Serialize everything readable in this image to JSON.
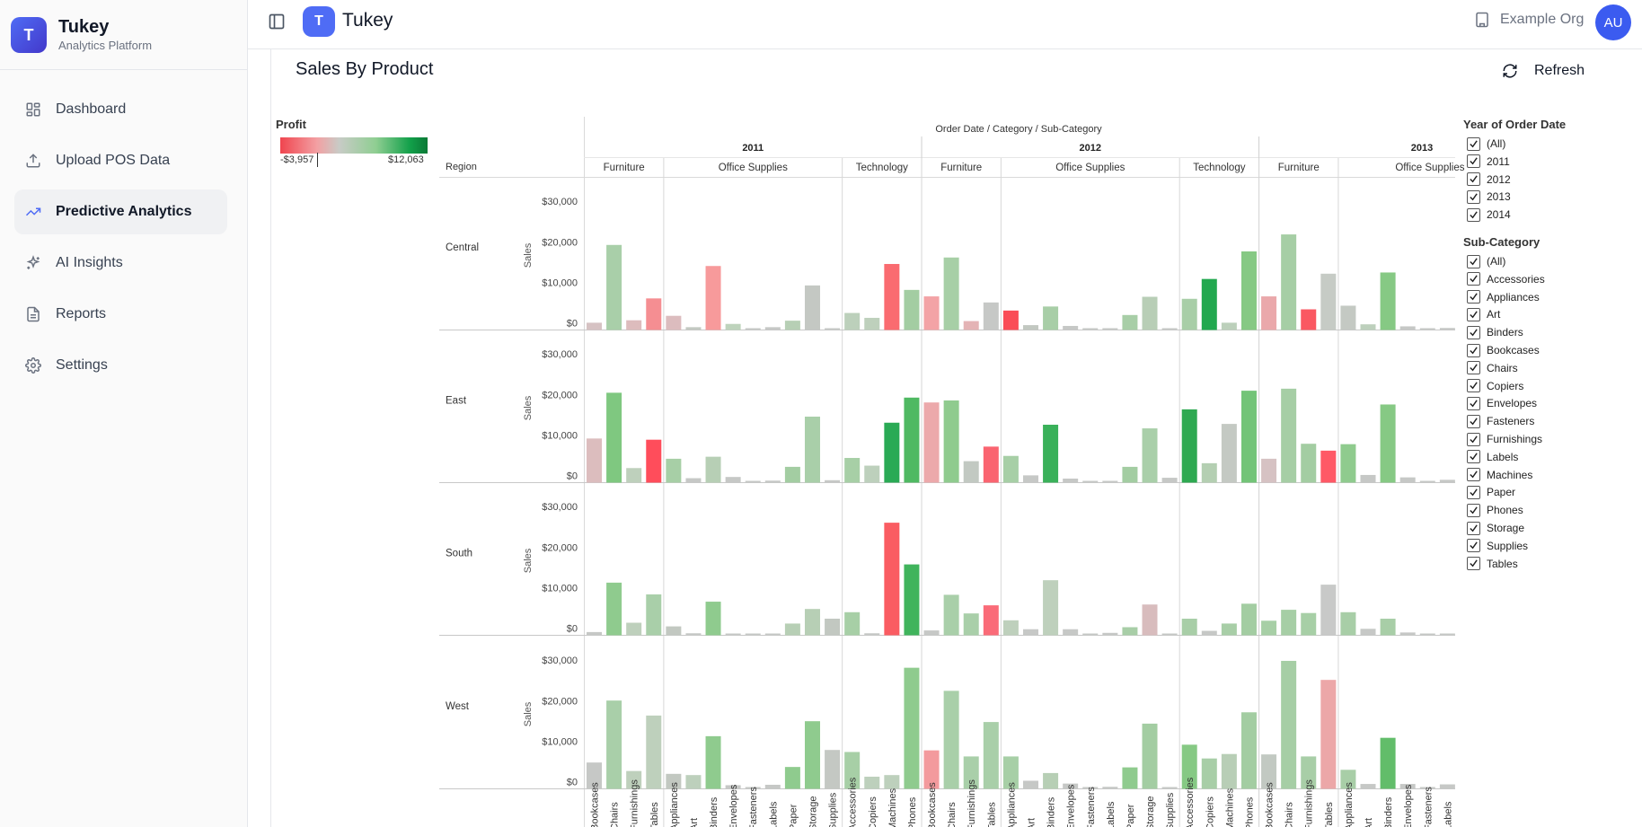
{
  "brand": {
    "logo_letter": "T",
    "title": "Tukey",
    "subtitle": "Analytics Platform"
  },
  "nav": [
    {
      "label": "Dashboard",
      "icon": "dashboard-icon",
      "active": false
    },
    {
      "label": "Upload POS Data",
      "icon": "upload-icon",
      "active": false
    },
    {
      "label": "Predictive Analytics",
      "icon": "trending-up-icon",
      "active": true
    },
    {
      "label": "AI Insights",
      "icon": "sparkles-icon",
      "active": false
    },
    {
      "label": "Reports",
      "icon": "file-text-icon",
      "active": false
    },
    {
      "label": "Settings",
      "icon": "gear-icon",
      "active": false
    }
  ],
  "header": {
    "logo_letter": "T",
    "title": "Tukey",
    "org": "Example Org",
    "avatar": "AU"
  },
  "page": {
    "title": "Sales By Product",
    "refresh_label": "Refresh"
  },
  "legend": {
    "title": "Profit",
    "min": "-$3,957",
    "max": "$12,063"
  },
  "filters": {
    "year": {
      "title": "Year of Order Date",
      "items": [
        "(All)",
        "2011",
        "2012",
        "2013",
        "2014"
      ]
    },
    "subcategory": {
      "title": "Sub-Category",
      "items": [
        "(All)",
        "Accessories",
        "Appliances",
        "Art",
        "Binders",
        "Bookcases",
        "Chairs",
        "Copiers",
        "Envelopes",
        "Fasteners",
        "Furnishings",
        "Labels",
        "Machines",
        "Paper",
        "Phones",
        "Storage",
        "Supplies",
        "Tables"
      ]
    }
  },
  "chart_data": {
    "type": "bar",
    "column_header": "Order Date / Category / Sub-Category",
    "row_header": "Region",
    "ylabel": "Sales",
    "yticks": [
      "$0",
      "$10,000",
      "$20,000",
      "$30,000"
    ],
    "ylim": [
      0,
      35000
    ],
    "regions": [
      "Central",
      "East",
      "South",
      "West"
    ],
    "years": [
      {
        "year": "2011",
        "categories": [
          {
            "name": "Furniture",
            "subcategories": [
              "Bookcases",
              "Chairs",
              "Furnishings",
              "Tables"
            ]
          },
          {
            "name": "Office Supplies",
            "subcategories": [
              "Appliances",
              "Art",
              "Binders",
              "Envelopes",
              "Fasteners",
              "Labels",
              "Paper",
              "Storage",
              "Supplies"
            ]
          },
          {
            "name": "Technology",
            "subcategories": [
              "Accessories",
              "Copiers",
              "Machines",
              "Phones"
            ]
          }
        ]
      },
      {
        "year": "2012",
        "categories": [
          {
            "name": "Furniture",
            "subcategories": [
              "Bookcases",
              "Chairs",
              "Furnishings",
              "Tables"
            ]
          },
          {
            "name": "Office Supplies",
            "subcategories": [
              "Appliances",
              "Art",
              "Binders",
              "Envelopes",
              "Fasteners",
              "Labels",
              "Paper",
              "Storage",
              "Supplies"
            ]
          },
          {
            "name": "Technology",
            "subcategories": [
              "Accessories",
              "Copiers",
              "Machines",
              "Phones"
            ]
          }
        ]
      },
      {
        "year": "2013",
        "categories": [
          {
            "name": "Furniture",
            "subcategories": [
              "Bookcases",
              "Chairs",
              "Furnishings",
              "Tables"
            ]
          },
          {
            "name": "Office Supplies",
            "subcategories": [
              "Appliances",
              "Art",
              "Binders",
              "Envelopes",
              "Fasteners",
              "Labels"
            ]
          }
        ]
      }
    ],
    "sales": {
      "Central": [
        1800,
        21000,
        2400,
        7800,
        3500,
        700,
        15800,
        1500,
        200,
        700,
        2300,
        11000,
        400,
        4200,
        3000,
        16300,
        9900,
        8300,
        17900,
        2200,
        6800,
        4800,
        1200,
        5800,
        1000,
        200,
        400,
        3700,
        8200,
        300,
        7700,
        12600,
        1800,
        19400,
        8300,
        23600,
        5100,
        13900,
        6000,
        1400,
        14200,
        900,
        300,
        500
      ],
      "East": [
        10900,
        22200,
        3600,
        10600,
        5900,
        1100,
        6400,
        1400,
        200,
        500,
        3900,
        16300,
        600,
        6100,
        4200,
        14800,
        21000,
        19800,
        20300,
        5300,
        8900,
        6600,
        1800,
        14300,
        1000,
        300,
        400,
        3900,
        13400,
        1200,
        18100,
        4800,
        14500,
        22700,
        5900,
        23200,
        9600,
        7900,
        9500,
        1900,
        19300,
        1300,
        300,
        700
      ],
      "South": [
        800,
        13000,
        3100,
        10100,
        2200,
        500,
        8300,
        200,
        100,
        400,
        2900,
        6500,
        4100,
        5700,
        500,
        27800,
        17500,
        1200,
        10000,
        5400,
        7400,
        3700,
        1500,
        13600,
        1500,
        200,
        600,
        2000,
        7600,
        300,
        4100,
        1100,
        2900,
        7800,
        3600,
        6300,
        5500,
        12500,
        5700,
        1600,
        4100,
        700,
        100,
        300
      ],
      "West": [
        6500,
        21800,
        4400,
        18100,
        3700,
        3400,
        13000,
        900,
        400,
        1000,
        5400,
        16700,
        9600,
        9100,
        3000,
        3400,
        29900,
        9500,
        24200,
        8000,
        16500,
        8000,
        2000,
        3900,
        1300,
        300,
        500,
        5300,
        16100,
        300,
        10900,
        7500,
        8600,
        18900,
        8500,
        31600,
        8000,
        26900,
        4700,
        1200,
        12600,
        1200,
        200,
        1100
      ]
    },
    "profit_colors": {
      "Central": [
        "#d6c2c3",
        "#a9cfa9",
        "#ddbcbd",
        "#f58e92",
        "#dcbcbe",
        "#c3c9c2",
        "#f79a9b",
        "#bed3bc",
        "#c6c8c6",
        "#c6c8c6",
        "#b7cfb5",
        "#c4c8c3",
        "#c6c8c6",
        "#bcd0bb",
        "#bed0bc",
        "#fa6b70",
        "#a3cda2",
        "#f3a3a6",
        "#a7cfa6",
        "#e4b3b5",
        "#c6c8c6",
        "#fa4d57",
        "#c2c8c1",
        "#a8cea7",
        "#c6c8c6",
        "#c6c8c6",
        "#c6c8c6",
        "#a8cea7",
        "#b8ceb6",
        "#c6c8c6",
        "#a8cea7",
        "#22a84f",
        "#bcd0bb",
        "#86c984",
        "#eaa8ab",
        "#a6cea5",
        "#fa5862",
        "#c6cbc5",
        "#c4c9c3",
        "#bdd0bc",
        "#86c984",
        "#c6c8c6",
        "#c6c8c6",
        "#c6c8c6"
      ],
      "East": [
        "#dcbdbe",
        "#7fc880",
        "#bed0bc",
        "#ff4d5b",
        "#a7cfa6",
        "#c6c8c6",
        "#b7cfb5",
        "#c6c8c6",
        "#c6c8c6",
        "#c6c8c6",
        "#a3cda2",
        "#a9cfa9",
        "#c6c8c6",
        "#a7cfa6",
        "#bdd0bc",
        "#2aaa55",
        "#4fb962",
        "#eca9ab",
        "#8fcb8e",
        "#c2c9c2",
        "#fa6470",
        "#a7cfa6",
        "#c6c8c6",
        "#3ab15a",
        "#c6c8c6",
        "#c6c8c6",
        "#c6c8c6",
        "#a3cda2",
        "#a9cfa9",
        "#c6c8c6",
        "#2ea951",
        "#b4cfb2",
        "#c4c9c3",
        "#73c478",
        "#d6c2c3",
        "#a6cea5",
        "#a3cda2",
        "#ff5966",
        "#8fcb8e",
        "#c6c8c6",
        "#86c984",
        "#c6c8c6",
        "#c6c8c6",
        "#c6c8c6"
      ],
      "South": [
        "#c6c8c6",
        "#8fcb8e",
        "#bed0bc",
        "#a9cfa9",
        "#c2c8c1",
        "#c6c8c6",
        "#8fcb8e",
        "#c6c8c6",
        "#c6c8c6",
        "#c6c8c6",
        "#b7cfb5",
        "#b7cfb5",
        "#c2c8c1",
        "#a7cfa6",
        "#c6c8c6",
        "#fa5c62",
        "#40b45c",
        "#c6c8c6",
        "#a9cfa9",
        "#a9cfa9",
        "#fa6b78",
        "#bed0bc",
        "#c6c8c6",
        "#bed0bc",
        "#c6c8c6",
        "#c6c8c6",
        "#c6c8c6",
        "#a8cea7",
        "#d8bcbd",
        "#c6c8c6",
        "#a8cea7",
        "#c6c8c6",
        "#a8cea7",
        "#a3cda2",
        "#a7cfa6",
        "#a6cea5",
        "#a7cfa6",
        "#c8c9c8",
        "#a8cea7",
        "#c6c8c6",
        "#a8cea7",
        "#c6c8c6",
        "#c6c8c6",
        "#c6c8c6"
      ],
      "West": [
        "#c6c8c6",
        "#a9cfa9",
        "#bed0bc",
        "#bed0bc",
        "#c2c8c1",
        "#bdd0bc",
        "#8fcb8e",
        "#c6c8c6",
        "#c6c8c6",
        "#c6c8c6",
        "#8fcb8e",
        "#8fcb8e",
        "#c4c8c3",
        "#a7cfa6",
        "#bdd0bc",
        "#bdd0bc",
        "#8fcb8e",
        "#f39a9d",
        "#a9cfa9",
        "#a9cfa9",
        "#a9cfa9",
        "#a7cfa6",
        "#c6c8c6",
        "#b7cfb5",
        "#c6c8c6",
        "#c6c8c6",
        "#c6c8c6",
        "#8fcb8e",
        "#a3cda2",
        "#c6c8c6",
        "#86c984",
        "#a8cea7",
        "#b8ceb6",
        "#a3cda2",
        "#c2c9c2",
        "#a6cea5",
        "#a8cea7",
        "#eca7a8",
        "#a8cea7",
        "#c6c8c6",
        "#62bd6a",
        "#c6c8c6",
        "#c6c8c6",
        "#c6c8c6"
      ]
    }
  }
}
